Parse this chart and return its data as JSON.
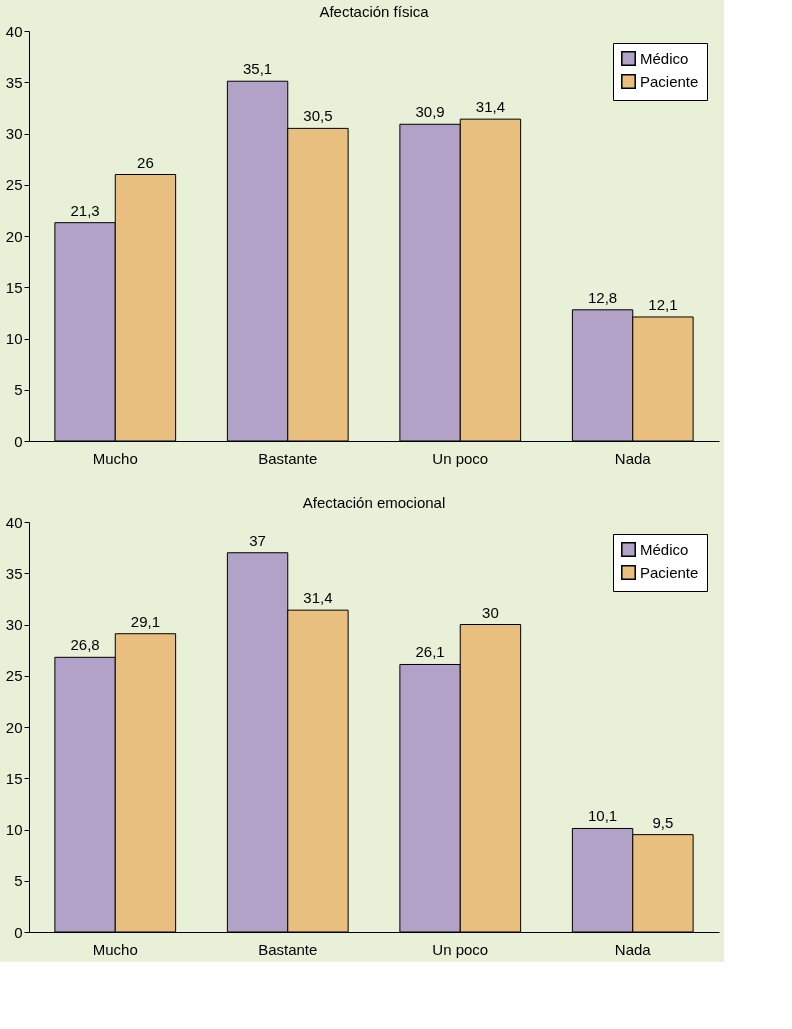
{
  "chart_data": [
    {
      "type": "bar",
      "title": "Afectación física",
      "categories": [
        "Mucho",
        "Bastante",
        "Un poco",
        "Nada"
      ],
      "series": [
        {
          "name": "Médico",
          "color": "#b3a2c7",
          "values": [
            21.3,
            35.1,
            30.9,
            12.8
          ],
          "value_labels": [
            "21,3",
            "35,1",
            "30,9",
            "12,8"
          ]
        },
        {
          "name": "Paciente",
          "color": "#e9bf7f",
          "values": [
            26,
            30.5,
            31.4,
            12.1
          ],
          "value_labels": [
            "26",
            "30,5",
            "31,4",
            "12,1"
          ]
        }
      ],
      "ylim": [
        0,
        40
      ],
      "yticks": [
        0,
        5,
        10,
        15,
        20,
        25,
        30,
        35,
        40
      ],
      "grid": false,
      "legend": "top right"
    },
    {
      "type": "bar",
      "title": "Afectación emocional",
      "categories": [
        "Mucho",
        "Bastante",
        "Un poco",
        "Nada"
      ],
      "series": [
        {
          "name": "Médico",
          "color": "#b3a2c7",
          "values": [
            26.8,
            37,
            26.1,
            10.1
          ],
          "value_labels": [
            "26,8",
            "37",
            "26,1",
            "10,1"
          ]
        },
        {
          "name": "Paciente",
          "color": "#e9bf7f",
          "values": [
            29.1,
            31.4,
            30,
            9.5
          ],
          "value_labels": [
            "29,1",
            "31,4",
            "30",
            "9,5"
          ]
        }
      ],
      "ylim": [
        0,
        40
      ],
      "yticks": [
        0,
        5,
        10,
        15,
        20,
        25,
        30,
        35,
        40
      ],
      "grid": false,
      "legend": "top right"
    }
  ]
}
